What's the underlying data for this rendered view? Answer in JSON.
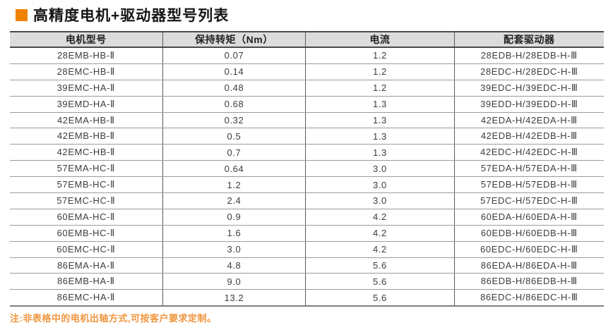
{
  "title": {
    "text": "高精度电机+驱动器型号列表"
  },
  "table": {
    "headers": [
      "电机型号",
      "保持转矩（Nm）",
      "电流",
      "配套驱动器"
    ],
    "rows": [
      [
        "28EMB-HB-Ⅱ",
        "0.07",
        "1.2",
        "28EDB-H/28EDB-H-Ⅲ"
      ],
      [
        "28EMC-HB-Ⅱ",
        "0.14",
        "1.2",
        "28EDC-H/28EDC-H-Ⅲ"
      ],
      [
        "39EMC-HA-Ⅱ",
        "0.48",
        "1.2",
        "39EDC-H/39EDC-H-Ⅲ"
      ],
      [
        "39EMD-HA-Ⅱ",
        "0.68",
        "1.3",
        "39EDD-H/39EDD-H-Ⅲ"
      ],
      [
        "42EMA-HB-Ⅱ",
        "0.32",
        "1.3",
        "42EDA-H/42EDA-H-Ⅲ"
      ],
      [
        "42EMB-HB-Ⅱ",
        "0.5",
        "1.3",
        "42EDB-H/42EDB-H-Ⅲ"
      ],
      [
        "42EMC-HB-Ⅱ",
        "0.7",
        "1.3",
        "42EDC-H/42EDC-H-Ⅲ"
      ],
      [
        "57EMA-HC-Ⅱ",
        "0.64",
        "3.0",
        "57EDA-H/57EDA-H-Ⅲ"
      ],
      [
        "57EMB-HC-Ⅱ",
        "1.2",
        "3.0",
        "57EDB-H/57EDB-H-Ⅲ"
      ],
      [
        "57EMC-HC-Ⅱ",
        "2.4",
        "3.0",
        "57EDC-H/57EDC-H-Ⅲ"
      ],
      [
        "60EMA-HC-Ⅱ",
        "0.9",
        "4.2",
        "60EDA-H/60EDA-H-Ⅲ"
      ],
      [
        "60EMB-HC-Ⅱ",
        "1.6",
        "4.2",
        "60EDB-H/60EDB-H-Ⅲ"
      ],
      [
        "60EMC-HC-Ⅱ",
        "3.0",
        "4.2",
        "60EDC-H/60EDC-H-Ⅲ"
      ],
      [
        "86EMA-HA-Ⅱ",
        "4.8",
        "5.6",
        "86EDA-H/86EDA-H-Ⅲ"
      ],
      [
        "86EMB-HA-Ⅱ",
        "9.0",
        "5.6",
        "86EDB-H/86EDB-H-Ⅲ"
      ],
      [
        "86EMC-HA-Ⅱ",
        "13.2",
        "5.6",
        "86EDC-H/86EDC-H-Ⅲ"
      ]
    ]
  },
  "note": {
    "text": "注:非表格中的电机出轴方式,可按客户要求定制。"
  },
  "colors": {
    "accent_orange": "#EF8200",
    "note_orange": "#F0953C",
    "header_bg": "#DCDCDC",
    "line_dark": "#4A4A4A",
    "line_light": "#9B9B9B",
    "title_text": "#151515",
    "cell_text": "#3D3D3D"
  }
}
